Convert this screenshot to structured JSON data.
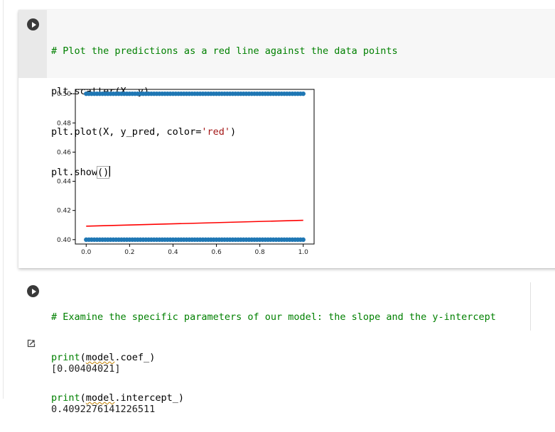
{
  "cell1": {
    "code": [
      "# Plot the predictions as a red line against the data points",
      "plt.scatter(X, y)",
      "plt.plot(X, y_pred, color=",
      "'red'",
      ")",
      "plt.show",
      "()"
    ]
  },
  "cell2": {
    "code": [
      "# Examine the specific parameters of our model: the slope and the y-intercept",
      "print",
      "(",
      "model",
      ".coef_)",
      "print",
      "(",
      "model",
      ".intercept_)"
    ],
    "output": [
      "[0.00404021]",
      "0.4092276141226511"
    ]
  },
  "icons": {
    "run": "play-circle-icon",
    "output": "output-arrow-icon"
  },
  "colors": {
    "comment": "#008000",
    "string": "#a31515",
    "scatter": "#1f77b4",
    "line": "#ff0000"
  },
  "chart_data": {
    "type": "scatter",
    "xlim": [
      -0.05,
      1.05
    ],
    "ylim": [
      0.397,
      0.503
    ],
    "xticks": [
      "0.0",
      "0.2",
      "0.4",
      "0.6",
      "0.8",
      "1.0"
    ],
    "yticks": [
      "0.40",
      "0.42",
      "0.44",
      "0.46",
      "0.48",
      "0.50"
    ],
    "series": [
      {
        "type": "scatter",
        "x_range": [
          0,
          1
        ],
        "y_values": [
          0.4,
          0.5
        ],
        "color": "#1f77b4"
      },
      {
        "type": "line",
        "x": [
          0,
          1
        ],
        "y": [
          0.4092276141226511,
          0.4132678241226511
        ],
        "color": "#ff0000"
      }
    ],
    "title": "",
    "xlabel": "",
    "ylabel": ""
  }
}
